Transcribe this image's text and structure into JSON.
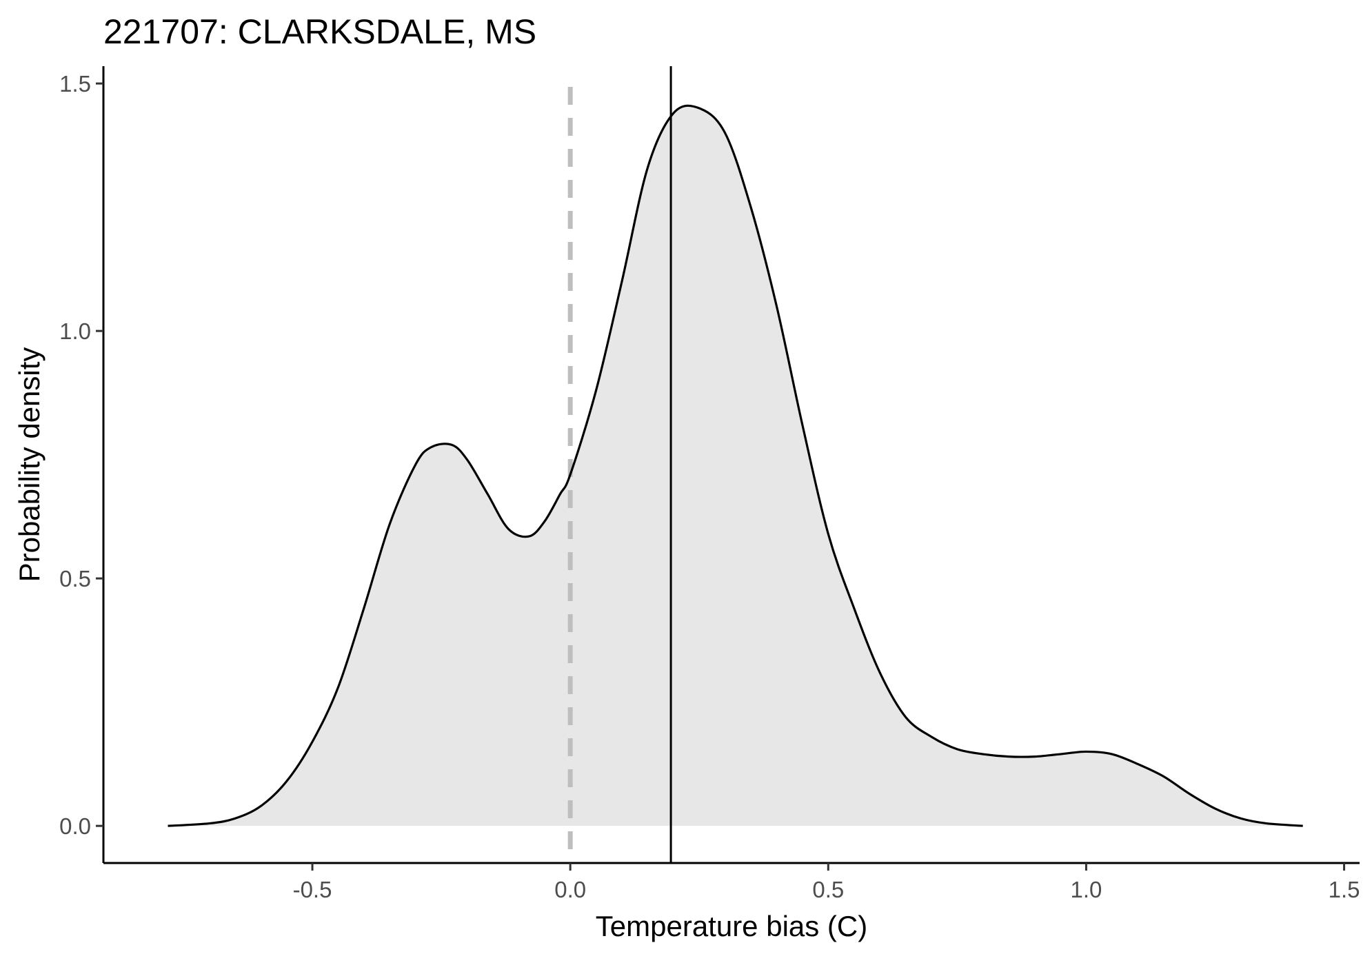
{
  "chart_data": {
    "type": "area",
    "title": "221707: CLARKSDALE, MS",
    "xlabel": "Temperature bias (C)",
    "ylabel": "Probability density",
    "xlim": [
      -0.905,
      1.53
    ],
    "ylim": [
      -0.075,
      1.535
    ],
    "x_ticks": [
      -0.5,
      0.0,
      0.5,
      1.0,
      1.5
    ],
    "x_tick_labels": [
      "-0.5",
      "0.0",
      "0.5",
      "1.0",
      "1.5"
    ],
    "y_ticks": [
      0.0,
      0.5,
      1.0,
      1.5
    ],
    "y_tick_labels": [
      "0.0",
      "0.5",
      "1.0",
      "1.5"
    ],
    "grid": false,
    "legend": "none",
    "reference_lines": {
      "zero_line": {
        "x": 0.0,
        "style": "dashed",
        "color": "#bebebe"
      },
      "mean_line": {
        "x": 0.195,
        "style": "solid",
        "color": "#000000"
      }
    },
    "series": [
      {
        "x": [
          -0.78,
          -0.7,
          -0.65,
          -0.6,
          -0.55,
          -0.5,
          -0.45,
          -0.4,
          -0.35,
          -0.3,
          -0.27,
          -0.23,
          -0.2,
          -0.16,
          -0.12,
          -0.08,
          -0.05,
          -0.02,
          0.0,
          0.05,
          0.1,
          0.15,
          0.2,
          0.25,
          0.3,
          0.35,
          0.4,
          0.45,
          0.5,
          0.55,
          0.6,
          0.65,
          0.7,
          0.75,
          0.8,
          0.85,
          0.9,
          0.95,
          1.0,
          1.05,
          1.1,
          1.15,
          1.2,
          1.25,
          1.3,
          1.35,
          1.42
        ],
        "values": [
          0.0,
          0.005,
          0.015,
          0.04,
          0.09,
          0.17,
          0.28,
          0.44,
          0.61,
          0.73,
          0.765,
          0.77,
          0.74,
          0.67,
          0.6,
          0.585,
          0.615,
          0.67,
          0.71,
          0.88,
          1.1,
          1.33,
          1.44,
          1.45,
          1.4,
          1.25,
          1.05,
          0.81,
          0.59,
          0.44,
          0.31,
          0.22,
          0.18,
          0.155,
          0.145,
          0.14,
          0.14,
          0.145,
          0.15,
          0.145,
          0.125,
          0.1,
          0.065,
          0.035,
          0.015,
          0.005,
          0.0
        ],
        "color": "#000000",
        "fill": "#e6e7e6"
      }
    ]
  }
}
